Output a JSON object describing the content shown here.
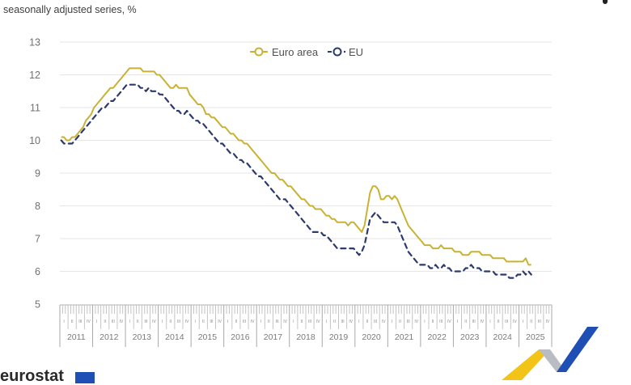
{
  "header": {
    "subtitle": "seasonally adjusted series, %",
    "logo_text": "eurostat"
  },
  "colors": {
    "euro_area": "#c9b233",
    "eu": "#2c3a6e",
    "grid": "#e6e6e6",
    "axis": "#b0b0b0",
    "brand_yellow": "#f2c418",
    "brand_blue": "#1f4fb4",
    "brand_grey": "#b9bcc2"
  },
  "chart_data": {
    "type": "line",
    "title": "",
    "subtitle": "seasonally adjusted series, %",
    "xlabel": "",
    "ylabel": "",
    "ylim": [
      5,
      13
    ],
    "yticks": [
      "5",
      "6",
      "7",
      "8",
      "9",
      "10",
      "11",
      "12",
      "13"
    ],
    "grid": true,
    "legend": "top-center",
    "x_start": "2011-01",
    "frequency": "monthly",
    "years": [
      "2011",
      "2012",
      "2013",
      "2014",
      "2015",
      "2016",
      "2017",
      "2018",
      "2019",
      "2020",
      "2021",
      "2022",
      "2023",
      "2024",
      "2025"
    ],
    "quarters": [
      "I",
      "II",
      "III",
      "IV"
    ],
    "series": [
      {
        "name": "Euro area",
        "style": "solid",
        "values": [
          10.1,
          10.1,
          10.0,
          10.0,
          10.1,
          10.1,
          10.2,
          10.3,
          10.4,
          10.6,
          10.7,
          10.8,
          11.0,
          11.1,
          11.2,
          11.3,
          11.4,
          11.5,
          11.6,
          11.6,
          11.7,
          11.8,
          11.9,
          12.0,
          12.1,
          12.2,
          12.2,
          12.2,
          12.2,
          12.2,
          12.1,
          12.1,
          12.1,
          12.1,
          12.1,
          12.0,
          12.0,
          11.9,
          11.8,
          11.7,
          11.6,
          11.6,
          11.7,
          11.6,
          11.6,
          11.6,
          11.6,
          11.4,
          11.3,
          11.2,
          11.1,
          11.1,
          11.0,
          10.8,
          10.8,
          10.7,
          10.7,
          10.6,
          10.5,
          10.4,
          10.4,
          10.3,
          10.2,
          10.2,
          10.1,
          10.0,
          10.0,
          9.9,
          9.9,
          9.8,
          9.7,
          9.6,
          9.5,
          9.4,
          9.3,
          9.2,
          9.1,
          9.0,
          9.0,
          8.9,
          8.8,
          8.8,
          8.7,
          8.6,
          8.6,
          8.5,
          8.4,
          8.3,
          8.2,
          8.2,
          8.1,
          8.0,
          8.0,
          7.9,
          7.9,
          7.9,
          7.8,
          7.7,
          7.7,
          7.6,
          7.6,
          7.5,
          7.5,
          7.5,
          7.5,
          7.4,
          7.5,
          7.5,
          7.4,
          7.3,
          7.2,
          7.4,
          7.9,
          8.4,
          8.6,
          8.6,
          8.5,
          8.2,
          8.2,
          8.3,
          8.3,
          8.2,
          8.3,
          8.2,
          8.0,
          7.8,
          7.6,
          7.4,
          7.3,
          7.2,
          7.1,
          7.0,
          6.9,
          6.8,
          6.8,
          6.8,
          6.7,
          6.7,
          6.7,
          6.8,
          6.7,
          6.7,
          6.7,
          6.7,
          6.6,
          6.6,
          6.6,
          6.5,
          6.5,
          6.5,
          6.6,
          6.6,
          6.6,
          6.6,
          6.5,
          6.5,
          6.5,
          6.5,
          6.4,
          6.4,
          6.4,
          6.4,
          6.4,
          6.3,
          6.3,
          6.3,
          6.3,
          6.3,
          6.3,
          6.3,
          6.4,
          6.2,
          6.2
        ]
      },
      {
        "name": "EU",
        "style": "dashed",
        "values": [
          10.0,
          9.9,
          9.9,
          9.9,
          9.9,
          10.0,
          10.1,
          10.2,
          10.3,
          10.4,
          10.5,
          10.6,
          10.7,
          10.8,
          10.9,
          11.0,
          11.0,
          11.1,
          11.2,
          11.2,
          11.3,
          11.4,
          11.5,
          11.6,
          11.7,
          11.7,
          11.7,
          11.7,
          11.7,
          11.6,
          11.6,
          11.5,
          11.6,
          11.5,
          11.5,
          11.5,
          11.4,
          11.4,
          11.3,
          11.2,
          11.1,
          11.0,
          10.9,
          10.9,
          10.8,
          10.8,
          10.9,
          10.8,
          10.7,
          10.6,
          10.6,
          10.5,
          10.5,
          10.4,
          10.3,
          10.2,
          10.1,
          10.0,
          9.9,
          9.9,
          9.8,
          9.7,
          9.6,
          9.6,
          9.5,
          9.4,
          9.4,
          9.3,
          9.3,
          9.2,
          9.1,
          9.0,
          8.9,
          8.9,
          8.8,
          8.7,
          8.6,
          8.5,
          8.4,
          8.3,
          8.2,
          8.2,
          8.2,
          8.1,
          8.0,
          7.9,
          7.8,
          7.7,
          7.6,
          7.5,
          7.4,
          7.3,
          7.2,
          7.2,
          7.2,
          7.2,
          7.1,
          7.1,
          7.0,
          6.9,
          6.8,
          6.7,
          6.7,
          6.7,
          6.7,
          6.7,
          6.7,
          6.7,
          6.6,
          6.5,
          6.6,
          6.8,
          7.2,
          7.6,
          7.7,
          7.8,
          7.7,
          7.6,
          7.5,
          7.5,
          7.5,
          7.5,
          7.5,
          7.4,
          7.2,
          7.0,
          6.8,
          6.6,
          6.5,
          6.4,
          6.3,
          6.2,
          6.2,
          6.2,
          6.2,
          6.1,
          6.1,
          6.2,
          6.1,
          6.1,
          6.2,
          6.1,
          6.1,
          6.0,
          6.0,
          6.0,
          6.0,
          6.0,
          6.1,
          6.1,
          6.2,
          6.1,
          6.1,
          6.1,
          6.0,
          6.0,
          6.0,
          6.0,
          6.0,
          5.9,
          5.9,
          5.9,
          5.9,
          5.9,
          5.8,
          5.8,
          5.8,
          5.9,
          5.9,
          6.0,
          5.9,
          6.0,
          5.9
        ]
      }
    ]
  }
}
